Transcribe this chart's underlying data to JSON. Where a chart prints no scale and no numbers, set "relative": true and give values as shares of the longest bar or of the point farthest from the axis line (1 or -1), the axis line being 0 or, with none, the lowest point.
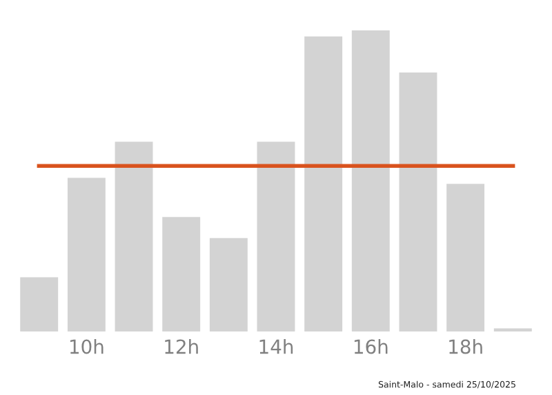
{
  "chart_data": {
    "type": "bar",
    "relative": true,
    "categories": [
      null,
      "10h",
      null,
      "12h",
      null,
      "14h",
      null,
      "16h",
      null,
      "18h",
      null
    ],
    "values": [
      0.18,
      0.51,
      0.63,
      0.38,
      0.31,
      0.63,
      0.98,
      1,
      0.86,
      0.49,
      0.01
    ],
    "color": "#d3d3d3",
    "ref_lines": [
      {
        "axis": "y",
        "value": 0.55,
        "color": "#d9531e"
      }
    ],
    "annotations": [
      "Saint-Malo - samedi 25/10/2025"
    ],
    "grid": false,
    "legend": false
  }
}
